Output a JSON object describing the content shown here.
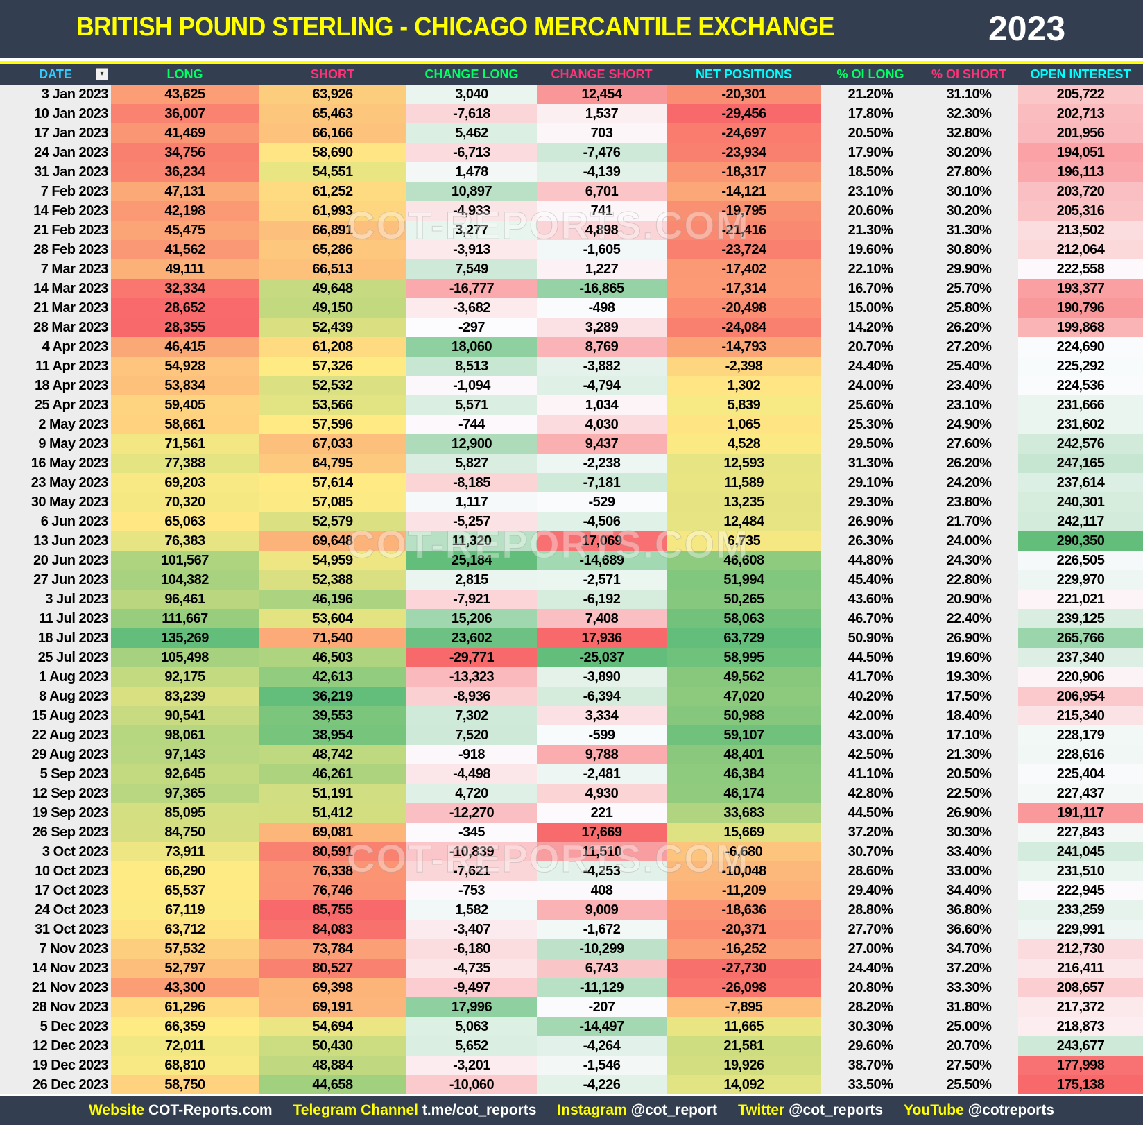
{
  "header": {
    "title": "BRITISH POUND STERLING - CHICAGO MERCANTILE EXCHANGE",
    "year": "2023"
  },
  "columns": [
    {
      "label": "DATE",
      "color": "#33CCFF"
    },
    {
      "label": "LONG",
      "color": "#00FF66"
    },
    {
      "label": "SHORT",
      "color": "#FF3377"
    },
    {
      "label": "CHANGE LONG",
      "color": "#00FF66"
    },
    {
      "label": "CHANGE SHORT",
      "color": "#FF3377"
    },
    {
      "label": "NET POSITIONS",
      "color": "#00FFFF"
    },
    {
      "label": "% OI LONG",
      "color": "#00FF66"
    },
    {
      "label": "% OI SHORT",
      "color": "#FF3377"
    },
    {
      "label": "OPEN INTEREST",
      "color": "#00FFFF"
    }
  ],
  "filter_icon": "filter-dropdown-icon",
  "watermark": "COT-REPORTS.COM",
  "rows": [
    [
      "3 Jan 2023",
      "43,625",
      "63,926",
      "3,040",
      "12,454",
      "-20,301",
      "21.20%",
      "31.10%",
      "205,722"
    ],
    [
      "10 Jan 2023",
      "36,007",
      "65,463",
      "-7,618",
      "1,537",
      "-29,456",
      "17.80%",
      "32.30%",
      "202,713"
    ],
    [
      "17 Jan 2023",
      "41,469",
      "66,166",
      "5,462",
      "703",
      "-24,697",
      "20.50%",
      "32.80%",
      "201,956"
    ],
    [
      "24 Jan 2023",
      "34,756",
      "58,690",
      "-6,713",
      "-7,476",
      "-23,934",
      "17.90%",
      "30.20%",
      "194,051"
    ],
    [
      "31 Jan 2023",
      "36,234",
      "54,551",
      "1,478",
      "-4,139",
      "-18,317",
      "18.50%",
      "27.80%",
      "196,113"
    ],
    [
      "7 Feb 2023",
      "47,131",
      "61,252",
      "10,897",
      "6,701",
      "-14,121",
      "23.10%",
      "30.10%",
      "203,720"
    ],
    [
      "14 Feb 2023",
      "42,198",
      "61,993",
      "-4,933",
      "741",
      "-19,795",
      "20.60%",
      "30.20%",
      "205,316"
    ],
    [
      "21 Feb 2023",
      "45,475",
      "66,891",
      "3,277",
      "4,898",
      "-21,416",
      "21.30%",
      "31.30%",
      "213,502"
    ],
    [
      "28 Feb 2023",
      "41,562",
      "65,286",
      "-3,913",
      "-1,605",
      "-23,724",
      "19.60%",
      "30.80%",
      "212,064"
    ],
    [
      "7 Mar 2023",
      "49,111",
      "66,513",
      "7,549",
      "1,227",
      "-17,402",
      "22.10%",
      "29.90%",
      "222,558"
    ],
    [
      "14 Mar 2023",
      "32,334",
      "49,648",
      "-16,777",
      "-16,865",
      "-17,314",
      "16.70%",
      "25.70%",
      "193,377"
    ],
    [
      "21 Mar 2023",
      "28,652",
      "49,150",
      "-3,682",
      "-498",
      "-20,498",
      "15.00%",
      "25.80%",
      "190,796"
    ],
    [
      "28 Mar 2023",
      "28,355",
      "52,439",
      "-297",
      "3,289",
      "-24,084",
      "14.20%",
      "26.20%",
      "199,868"
    ],
    [
      "4 Apr 2023",
      "46,415",
      "61,208",
      "18,060",
      "8,769",
      "-14,793",
      "20.70%",
      "27.20%",
      "224,690"
    ],
    [
      "11 Apr 2023",
      "54,928",
      "57,326",
      "8,513",
      "-3,882",
      "-2,398",
      "24.40%",
      "25.40%",
      "225,292"
    ],
    [
      "18 Apr 2023",
      "53,834",
      "52,532",
      "-1,094",
      "-4,794",
      "1,302",
      "24.00%",
      "23.40%",
      "224,536"
    ],
    [
      "25 Apr 2023",
      "59,405",
      "53,566",
      "5,571",
      "1,034",
      "5,839",
      "25.60%",
      "23.10%",
      "231,666"
    ],
    [
      "2 May 2023",
      "58,661",
      "57,596",
      "-744",
      "4,030",
      "1,065",
      "25.30%",
      "24.90%",
      "231,602"
    ],
    [
      "9 May 2023",
      "71,561",
      "67,033",
      "12,900",
      "9,437",
      "4,528",
      "29.50%",
      "27.60%",
      "242,576"
    ],
    [
      "16 May 2023",
      "77,388",
      "64,795",
      "5,827",
      "-2,238",
      "12,593",
      "31.30%",
      "26.20%",
      "247,165"
    ],
    [
      "23 May 2023",
      "69,203",
      "57,614",
      "-8,185",
      "-7,181",
      "11,589",
      "29.10%",
      "24.20%",
      "237,614"
    ],
    [
      "30 May 2023",
      "70,320",
      "57,085",
      "1,117",
      "-529",
      "13,235",
      "29.30%",
      "23.80%",
      "240,301"
    ],
    [
      "6 Jun 2023",
      "65,063",
      "52,579",
      "-5,257",
      "-4,506",
      "12,484",
      "26.90%",
      "21.70%",
      "242,117"
    ],
    [
      "13 Jun 2023",
      "76,383",
      "69,648",
      "11,320",
      "17,069",
      "6,735",
      "26.30%",
      "24.00%",
      "290,350"
    ],
    [
      "20 Jun 2023",
      "101,567",
      "54,959",
      "25,184",
      "-14,689",
      "46,608",
      "44.80%",
      "24.30%",
      "226,505"
    ],
    [
      "27 Jun 2023",
      "104,382",
      "52,388",
      "2,815",
      "-2,571",
      "51,994",
      "45.40%",
      "22.80%",
      "229,970"
    ],
    [
      "3 Jul 2023",
      "96,461",
      "46,196",
      "-7,921",
      "-6,192",
      "50,265",
      "43.60%",
      "20.90%",
      "221,021"
    ],
    [
      "11 Jul 2023",
      "111,667",
      "53,604",
      "15,206",
      "7,408",
      "58,063",
      "46.70%",
      "22.40%",
      "239,125"
    ],
    [
      "18 Jul 2023",
      "135,269",
      "71,540",
      "23,602",
      "17,936",
      "63,729",
      "50.90%",
      "26.90%",
      "265,766"
    ],
    [
      "25 Jul 2023",
      "105,498",
      "46,503",
      "-29,771",
      "-25,037",
      "58,995",
      "44.50%",
      "19.60%",
      "237,340"
    ],
    [
      "1 Aug 2023",
      "92,175",
      "42,613",
      "-13,323",
      "-3,890",
      "49,562",
      "41.70%",
      "19.30%",
      "220,906"
    ],
    [
      "8 Aug 2023",
      "83,239",
      "36,219",
      "-8,936",
      "-6,394",
      "47,020",
      "40.20%",
      "17.50%",
      "206,954"
    ],
    [
      "15 Aug 2023",
      "90,541",
      "39,553",
      "7,302",
      "3,334",
      "50,988",
      "42.00%",
      "18.40%",
      "215,340"
    ],
    [
      "22 Aug 2023",
      "98,061",
      "38,954",
      "7,520",
      "-599",
      "59,107",
      "43.00%",
      "17.10%",
      "228,179"
    ],
    [
      "29 Aug 2023",
      "97,143",
      "48,742",
      "-918",
      "9,788",
      "48,401",
      "42.50%",
      "21.30%",
      "228,616"
    ],
    [
      "5 Sep 2023",
      "92,645",
      "46,261",
      "-4,498",
      "-2,481",
      "46,384",
      "41.10%",
      "20.50%",
      "225,404"
    ],
    [
      "12 Sep 2023",
      "97,365",
      "51,191",
      "4,720",
      "4,930",
      "46,174",
      "42.80%",
      "22.50%",
      "227,437"
    ],
    [
      "19 Sep 2023",
      "85,095",
      "51,412",
      "-12,270",
      "221",
      "33,683",
      "44.50%",
      "26.90%",
      "191,117"
    ],
    [
      "26 Sep 2023",
      "84,750",
      "69,081",
      "-345",
      "17,669",
      "15,669",
      "37.20%",
      "30.30%",
      "227,843"
    ],
    [
      "3 Oct 2023",
      "73,911",
      "80,591",
      "-10,839",
      "11,510",
      "-6,680",
      "30.70%",
      "33.40%",
      "241,045"
    ],
    [
      "10 Oct 2023",
      "66,290",
      "76,338",
      "-7,621",
      "-4,253",
      "-10,048",
      "28.60%",
      "33.00%",
      "231,510"
    ],
    [
      "17 Oct 2023",
      "65,537",
      "76,746",
      "-753",
      "408",
      "-11,209",
      "29.40%",
      "34.40%",
      "222,945"
    ],
    [
      "24 Oct 2023",
      "67,119",
      "85,755",
      "1,582",
      "9,009",
      "-18,636",
      "28.80%",
      "36.80%",
      "233,259"
    ],
    [
      "31 Oct 2023",
      "63,712",
      "84,083",
      "-3,407",
      "-1,672",
      "-20,371",
      "27.70%",
      "36.60%",
      "229,991"
    ],
    [
      "7 Nov 2023",
      "57,532",
      "73,784",
      "-6,180",
      "-10,299",
      "-16,252",
      "27.00%",
      "34.70%",
      "212,730"
    ],
    [
      "14 Nov 2023",
      "52,797",
      "80,527",
      "-4,735",
      "6,743",
      "-27,730",
      "24.40%",
      "37.20%",
      "216,411"
    ],
    [
      "21 Nov 2023",
      "43,300",
      "69,398",
      "-9,497",
      "-11,129",
      "-26,098",
      "20.80%",
      "33.30%",
      "208,657"
    ],
    [
      "28 Nov 2023",
      "61,296",
      "69,191",
      "17,996",
      "-207",
      "-7,895",
      "28.20%",
      "31.80%",
      "217,372"
    ],
    [
      "5 Dec 2023",
      "66,359",
      "54,694",
      "5,063",
      "-14,497",
      "11,665",
      "30.30%",
      "25.00%",
      "218,873"
    ],
    [
      "12 Dec 2023",
      "72,011",
      "50,430",
      "5,652",
      "-4,264",
      "21,581",
      "29.60%",
      "20.70%",
      "243,677"
    ],
    [
      "19 Dec 2023",
      "68,810",
      "48,884",
      "-3,201",
      "-1,546",
      "19,926",
      "38.70%",
      "27.50%",
      "177,998"
    ],
    [
      "26 Dec 2023",
      "58,750",
      "44,658",
      "-10,060",
      "-4,226",
      "14,092",
      "33.50%",
      "25.50%",
      "175,138"
    ]
  ],
  "footer": [
    {
      "key": "Website",
      "value": "COT-Reports.com"
    },
    {
      "key": "Telegram Channel",
      "value": "t.me/cot_reports"
    },
    {
      "key": "Instagram",
      "value": "@cot_report"
    },
    {
      "key": "Twitter",
      "value": "@cot_reports"
    },
    {
      "key": "YouTube",
      "value": "@cotreports"
    }
  ],
  "colors": {
    "bg_dark": "#333F50",
    "title": "#FFFF00",
    "scale_red": "#F8696B",
    "scale_yellow": "#FFEB84",
    "scale_green": "#63BE7B",
    "scale_white": "#FCFCFF"
  }
}
